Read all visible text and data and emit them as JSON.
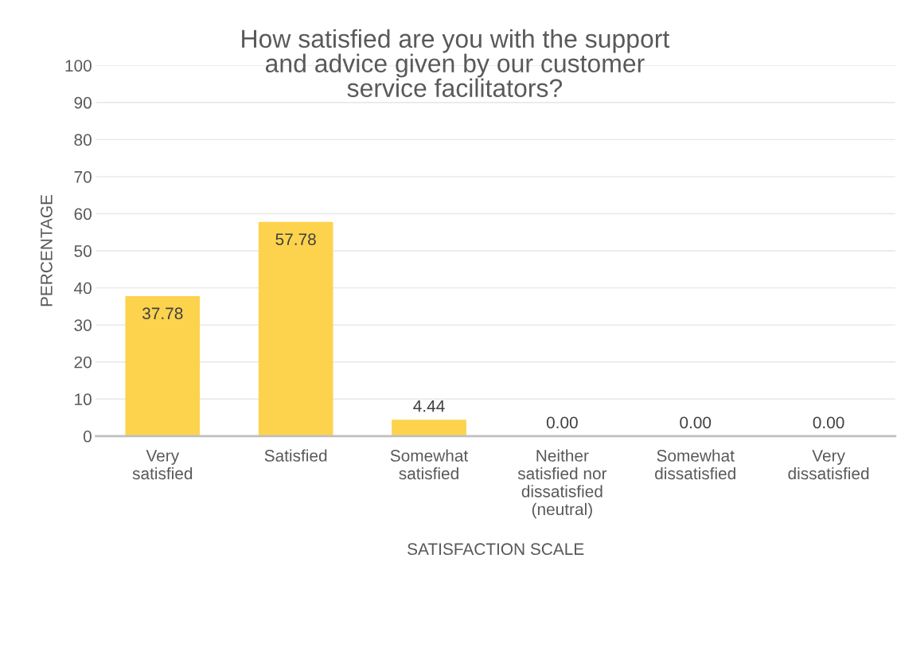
{
  "chart_data": {
    "type": "bar",
    "title": "How satisfied are you with the support\nand advice given by our customer\nservice facilitators?",
    "xlabel": "SATISFACTION SCALE",
    "ylabel": "PERCENTAGE",
    "categories": [
      "Very\nsatisfied",
      "Satisfied",
      "Somewhat\nsatisfied",
      "Neither\nsatisfied nor\ndissatisfied\n(neutral)",
      "Somewhat\ndissatisfied",
      "Very\ndissatisfied"
    ],
    "values": [
      37.78,
      57.78,
      4.44,
      0,
      0,
      0
    ],
    "value_labels": [
      "37.78",
      "57.78",
      "4.44",
      "0.00",
      "0.00",
      "0.00"
    ],
    "color": "#fdd34d",
    "ylim": [
      0,
      100
    ],
    "yticks": [
      0,
      10,
      20,
      30,
      40,
      50,
      60,
      70,
      80,
      90,
      100
    ],
    "grid": "y",
    "legend": false
  }
}
